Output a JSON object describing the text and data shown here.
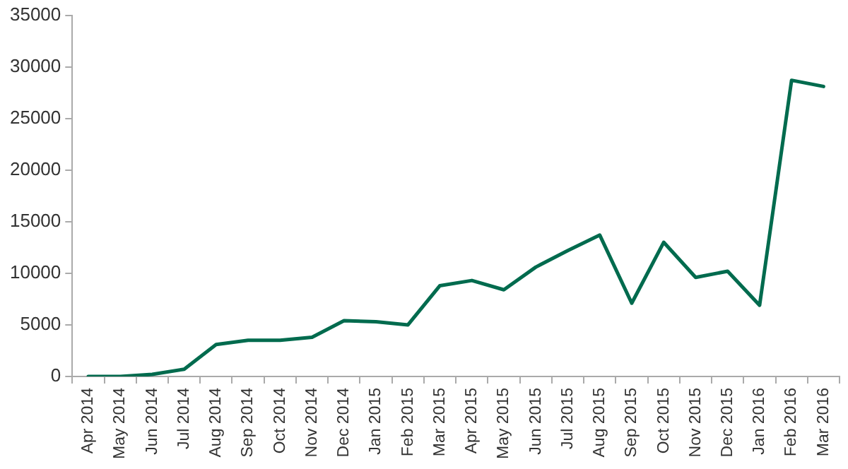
{
  "chart_data": {
    "type": "line",
    "categories": [
      "Apr 2014",
      "May 2014",
      "Jun 2014",
      "Jul 2014",
      "Aug 2014",
      "Sep 2014",
      "Oct 2014",
      "Nov 2014",
      "Dec 2014",
      "Jan 2015",
      "Feb 2015",
      "Mar 2015",
      "Apr 2015",
      "May 2015",
      "Jun 2015",
      "Jul 2015",
      "Aug 2015",
      "Sep 2015",
      "Oct 2015",
      "Nov 2015",
      "Dec 2015",
      "Jan 2016",
      "Feb 2016",
      "Mar 2016"
    ],
    "series": [
      {
        "color": "#006b4e",
        "values": [
          0,
          0,
          200,
          700,
          3100,
          3500,
          3500,
          3800,
          5400,
          5300,
          5000,
          8800,
          9300,
          8400,
          10600,
          12200,
          13700,
          7100,
          13000,
          9600,
          10200,
          6900,
          28700,
          28100
        ]
      }
    ],
    "ylim": [
      0,
      35000
    ],
    "yticks": [
      0,
      5000,
      10000,
      15000,
      20000,
      25000,
      30000,
      35000
    ],
    "grid": false,
    "legend": false,
    "marker": "none",
    "line_style": "solid"
  }
}
